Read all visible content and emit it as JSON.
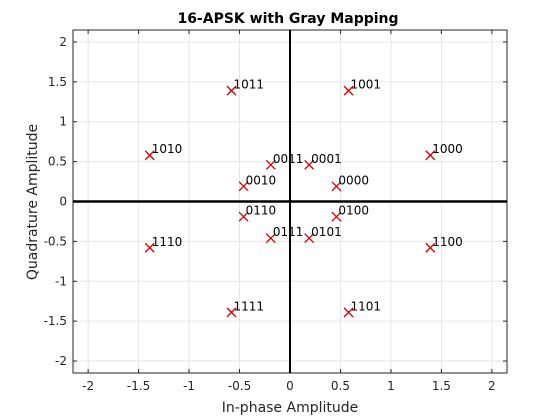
{
  "chart_data": {
    "type": "scatter",
    "title": "16-APSK with Gray Mapping",
    "xlabel": "In-phase Amplitude",
    "ylabel": "Quadrature Amplitude",
    "xlim": [
      -2.15,
      2.15
    ],
    "ylim": [
      -2.15,
      2.15
    ],
    "xticks": [
      -2,
      -1.5,
      -1,
      -0.5,
      0,
      0.5,
      1,
      1.5,
      2
    ],
    "xtick_labels": [
      "-2",
      "-1.5",
      "-1",
      "-0.5",
      "0",
      "0.5",
      "1",
      "1.5",
      "2"
    ],
    "yticks": [
      -2,
      -1.5,
      -1,
      -0.5,
      0,
      0.5,
      1,
      1.5,
      2
    ],
    "ytick_labels": [
      "-2",
      "-1.5",
      "-1",
      "-0.5",
      "0",
      "0.5",
      "1",
      "1.5",
      "2"
    ],
    "grid": true,
    "marker": "x",
    "marker_color": "#cc0000",
    "axis_line_color": "#000000",
    "points": [
      {
        "x": 0.46,
        "y": 0.19,
        "label": "0000"
      },
      {
        "x": 0.19,
        "y": 0.46,
        "label": "0001"
      },
      {
        "x": -0.46,
        "y": 0.19,
        "label": "0010"
      },
      {
        "x": -0.19,
        "y": 0.46,
        "label": "0011"
      },
      {
        "x": 0.46,
        "y": -0.19,
        "label": "0100"
      },
      {
        "x": 0.19,
        "y": -0.46,
        "label": "0101"
      },
      {
        "x": -0.46,
        "y": -0.19,
        "label": "0110"
      },
      {
        "x": -0.19,
        "y": -0.46,
        "label": "0111"
      },
      {
        "x": 1.39,
        "y": 0.58,
        "label": "1000"
      },
      {
        "x": 0.58,
        "y": 1.39,
        "label": "1001"
      },
      {
        "x": -1.39,
        "y": 0.58,
        "label": "1010"
      },
      {
        "x": -0.58,
        "y": 1.39,
        "label": "1011"
      },
      {
        "x": 1.39,
        "y": -0.58,
        "label": "1100"
      },
      {
        "x": 0.58,
        "y": -1.39,
        "label": "1101"
      },
      {
        "x": -1.39,
        "y": -0.58,
        "label": "1110"
      },
      {
        "x": -0.58,
        "y": -1.39,
        "label": "1111"
      }
    ]
  }
}
